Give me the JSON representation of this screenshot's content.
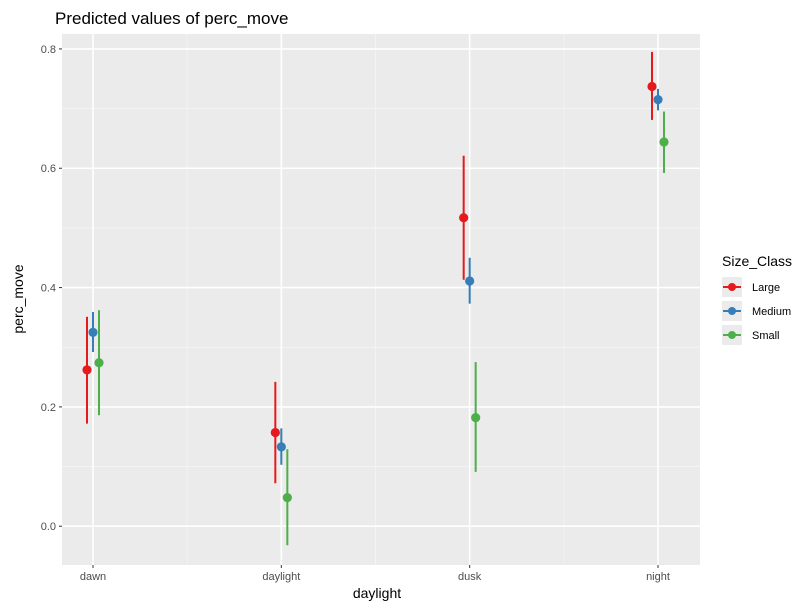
{
  "chart_data": {
    "type": "scatter",
    "title": "Predicted values of perc_move",
    "xlabel": "daylight",
    "ylabel": "perc_move",
    "categories": [
      "dawn",
      "daylight",
      "dusk",
      "night"
    ],
    "ylim": [
      -0.065,
      0.825
    ],
    "yticks": [
      "0.0",
      "0.2",
      "0.4",
      "0.6",
      "0.8"
    ],
    "grid": true,
    "legend": {
      "title": "Size_Class",
      "placement": "right"
    },
    "series": [
      {
        "name": "Large",
        "color": "#e41a1c",
        "values": [
          0.262,
          0.157,
          0.517,
          0.737
        ],
        "lower": [
          0.172,
          0.072,
          0.413,
          0.681
        ],
        "upper": [
          0.351,
          0.242,
          0.621,
          0.795
        ]
      },
      {
        "name": "Medium",
        "color": "#377eb8",
        "values": [
          0.325,
          0.133,
          0.411,
          0.715
        ],
        "lower": [
          0.292,
          0.103,
          0.373,
          0.697
        ],
        "upper": [
          0.359,
          0.164,
          0.45,
          0.733
        ]
      },
      {
        "name": "Small",
        "color": "#4daf4a",
        "values": [
          0.274,
          0.048,
          0.182,
          0.644
        ],
        "lower": [
          0.186,
          -0.032,
          0.091,
          0.592
        ],
        "upper": [
          0.362,
          0.129,
          0.275,
          0.695
        ]
      }
    ]
  }
}
